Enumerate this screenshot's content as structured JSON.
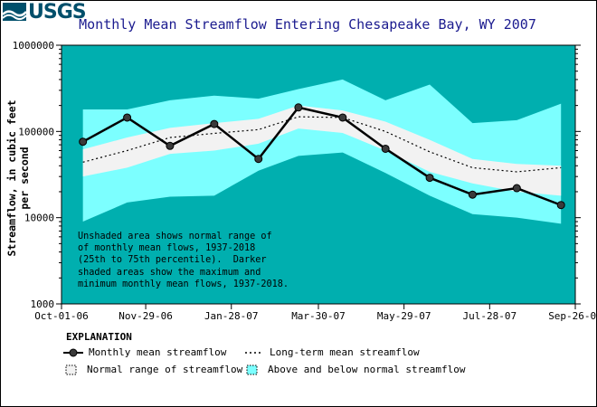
{
  "logo": {
    "text": "USGS"
  },
  "title": "Monthly Mean Streamflow Entering Chesapeake Bay, WY 2007",
  "chart_data": {
    "type": "line",
    "title": "Monthly Mean Streamflow Entering Chesapeake Bay, WY 2007",
    "ylabel": "Streamflow, in cubic feet per second",
    "xlabel": "",
    "yscale": "log",
    "ylim": [
      1000,
      1000000
    ],
    "y_ticks": [
      "1000",
      "10000",
      "100000",
      "1000000"
    ],
    "x_ticks": [
      "Oct-01-06",
      "Nov-29-06",
      "Jan-28-07",
      "Mar-30-07",
      "May-29-07",
      "Jul-28-07",
      "Sep-26-07"
    ],
    "x_tick_days": [
      0,
      59,
      119,
      180,
      240,
      300,
      360
    ],
    "months_day": [
      15,
      46,
      76,
      107,
      138,
      166,
      197,
      227,
      258,
      288,
      319,
      350
    ],
    "series": [
      {
        "name": "Monthly mean streamflow",
        "values": [
          76000,
          145000,
          68000,
          122000,
          48000,
          190000,
          145000,
          63000,
          29000,
          18500,
          22000,
          14000
        ]
      },
      {
        "name": "Long-term mean streamflow",
        "values": [
          44000,
          60000,
          85000,
          95000,
          105000,
          148000,
          145000,
          100000,
          58000,
          38000,
          34000,
          38000
        ]
      }
    ],
    "normal_range_upper": [
      62000,
      85000,
      110000,
      125000,
      140000,
      200000,
      175000,
      130000,
      80000,
      48000,
      42000,
      40000
    ],
    "normal_range_lower": [
      30000,
      38000,
      55000,
      60000,
      72000,
      108000,
      96000,
      60000,
      34000,
      25000,
      20000,
      18000
    ],
    "maximum": [
      180000,
      180000,
      230000,
      260000,
      240000,
      310000,
      400000,
      230000,
      350000,
      125000,
      135000,
      210000
    ],
    "minimum": [
      9000,
      15000,
      17500,
      18000,
      35000,
      52000,
      57000,
      33000,
      18000,
      11000,
      10000,
      8500
    ],
    "legend_placement": "bottom",
    "grid": false
  },
  "note_lines": [
    "Unshaded area shows normal range of",
    "of monthly mean flows, 1937-2018",
    "(25th to 75th percentile).  Darker",
    "shaded areas show the maximum and",
    "minimum monthly mean flows, 1937-2018."
  ],
  "legend": {
    "title": "EXPLANATION",
    "items": [
      {
        "label": "Monthly mean streamflow"
      },
      {
        "label": "Long-term mean streamflow"
      },
      {
        "label": "Normal range of streamflow"
      },
      {
        "label": "Above and below normal streamflow"
      }
    ]
  },
  "colors": {
    "plot_bg": "#00afaf",
    "above_below": "#7cffff",
    "normal": "#f2f2f2",
    "line": "#000000",
    "title": "#1b1b8f"
  }
}
